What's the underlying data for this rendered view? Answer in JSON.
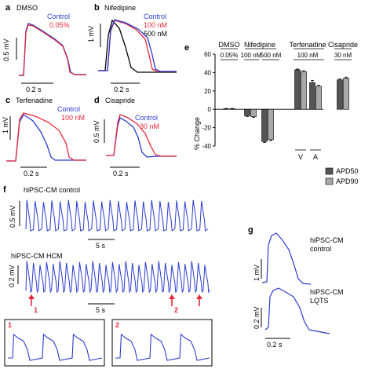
{
  "panels": {
    "a": {
      "letter": "a",
      "title": "DMSO",
      "legend": [
        "Control",
        "0.05%"
      ],
      "scale_v": "0.5 mV",
      "scale_t": "0.2 s"
    },
    "b": {
      "letter": "b",
      "title": "Nifedipine",
      "legend": [
        "Control",
        "100 nM",
        "500 nM"
      ],
      "scale_v": "1 mV",
      "scale_t": "0.2 s"
    },
    "c": {
      "letter": "c",
      "title": "Terfenadine",
      "legend": [
        "Control",
        "100 nM"
      ],
      "scale_v": "1 mV",
      "scale_t": "0.2 s"
    },
    "d": {
      "letter": "d",
      "title": "Cisapride",
      "legend": [
        "Control",
        "30 nM"
      ],
      "scale_v": "0.5 mV",
      "scale_t": "0.2 s"
    },
    "f": {
      "letter": "f",
      "control_label": "hiPSC-CM control",
      "hcm_label": "hiPSC-CM HCM",
      "scale_v1": "0.5 mV",
      "scale_t1": "5 s",
      "scale_v2": "0.2 mV",
      "scale_t2": "5 s",
      "arrows": [
        "1",
        "2"
      ],
      "insets": [
        "1",
        "2"
      ]
    },
    "g": {
      "letter": "g",
      "top_label": [
        "hiPSC-CM",
        "control"
      ],
      "bottom_label": [
        "hiPSC-CM",
        "LQTS"
      ],
      "scale_v1": "1 mV",
      "scale_v2": "0.2 mV",
      "scale_t": "0.2 s"
    }
  },
  "colors": {
    "control": "#2a3bd0",
    "drug": "#e8283a",
    "high": "#000000",
    "apd50": "#555555",
    "apd90": "#a8a8a8"
  },
  "chart_data": {
    "type": "bar",
    "letter": "e",
    "ylabel": "% Change",
    "ylim": [
      -40,
      60
    ],
    "yticks": [
      -40,
      -20,
      0,
      20,
      40,
      60
    ],
    "groups": [
      {
        "drug": "DMSO",
        "conc": [
          "0.05%"
        ]
      },
      {
        "drug": "Nifedipine",
        "conc": [
          "100 nM",
          "500 nM"
        ]
      },
      {
        "drug": "Terfenadine",
        "conc": [
          "100 nM"
        ]
      },
      {
        "drug": "Cisapride",
        "conc": [
          "30 nM"
        ]
      }
    ],
    "sublabels": [
      "V",
      "A"
    ],
    "categories": [
      "DMSO 0.05%",
      "Nifedipine 100 nM",
      "Nifedipine 500 nM",
      "Terfenadine 100 nM V",
      "Terfenadine 100 nM A",
      "Cisapride 30 nM"
    ],
    "series": [
      {
        "name": "APD50",
        "values": [
          0.5,
          -7,
          -35,
          43,
          29,
          32
        ],
        "errors": [
          0.4,
          0.8,
          1.2,
          0.8,
          2.5,
          1.0
        ]
      },
      {
        "name": "APD90",
        "values": [
          0.5,
          -8,
          -33,
          41,
          25,
          34
        ],
        "errors": [
          0.4,
          0.8,
          1.2,
          1.0,
          1.2,
          1.0
        ]
      }
    ]
  }
}
